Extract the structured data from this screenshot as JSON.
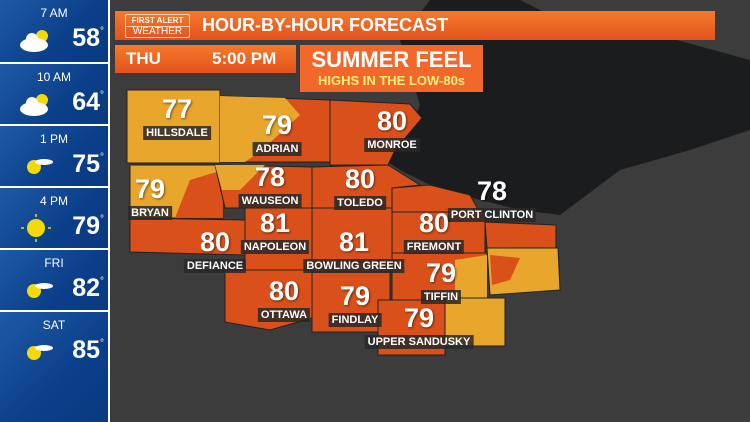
{
  "colors": {
    "sidebar": "#0b3f8a",
    "accent": "#e4521e",
    "warm": "#d9501a",
    "mild": "#e9a62c",
    "lake": "#1b1c1e"
  },
  "sidebar": [
    {
      "label": "7 AM",
      "temp": "58",
      "icon": "partly-cloudy-icon"
    },
    {
      "label": "10 AM",
      "temp": "64",
      "icon": "partly-cloudy-icon"
    },
    {
      "label": "1 PM",
      "temp": "75",
      "icon": "mostly-sunny-icon"
    },
    {
      "label": "4 PM",
      "temp": "79",
      "icon": "sunny-icon"
    },
    {
      "label": "FRI",
      "temp": "82",
      "icon": "mostly-sunny-icon"
    },
    {
      "label": "SAT",
      "temp": "85",
      "icon": "mostly-sunny-icon"
    }
  ],
  "degree": "°",
  "header": {
    "logo_top": "FIRST ALERT",
    "logo_bottom": "WEATHER",
    "title": "HOUR-BY-HOUR FORECAST",
    "day": "THU",
    "time": "5:00 PM",
    "headline": "SUMMER FEEL",
    "subhead": "HIGHS IN THE LOW-80s"
  },
  "cities": [
    {
      "name": "HILLSDALE",
      "temp": "77"
    },
    {
      "name": "ADRIAN",
      "temp": "79"
    },
    {
      "name": "MONROE",
      "temp": "80"
    },
    {
      "name": "BRYAN",
      "temp": "79"
    },
    {
      "name": "WAUSEON",
      "temp": "78"
    },
    {
      "name": "TOLEDO",
      "temp": "80"
    },
    {
      "name": "PORT CLINTON",
      "temp": "78"
    },
    {
      "name": "NAPOLEON",
      "temp": "81"
    },
    {
      "name": "FREMONT",
      "temp": "80"
    },
    {
      "name": "DEFIANCE",
      "temp": "80"
    },
    {
      "name": "BOWLING GREEN",
      "temp": "81"
    },
    {
      "name": "TIFFIN",
      "temp": "79"
    },
    {
      "name": "OTTAWA",
      "temp": "80"
    },
    {
      "name": "FINDLAY",
      "temp": "79"
    },
    {
      "name": "UPPER SANDUSKY",
      "temp": "79"
    }
  ]
}
